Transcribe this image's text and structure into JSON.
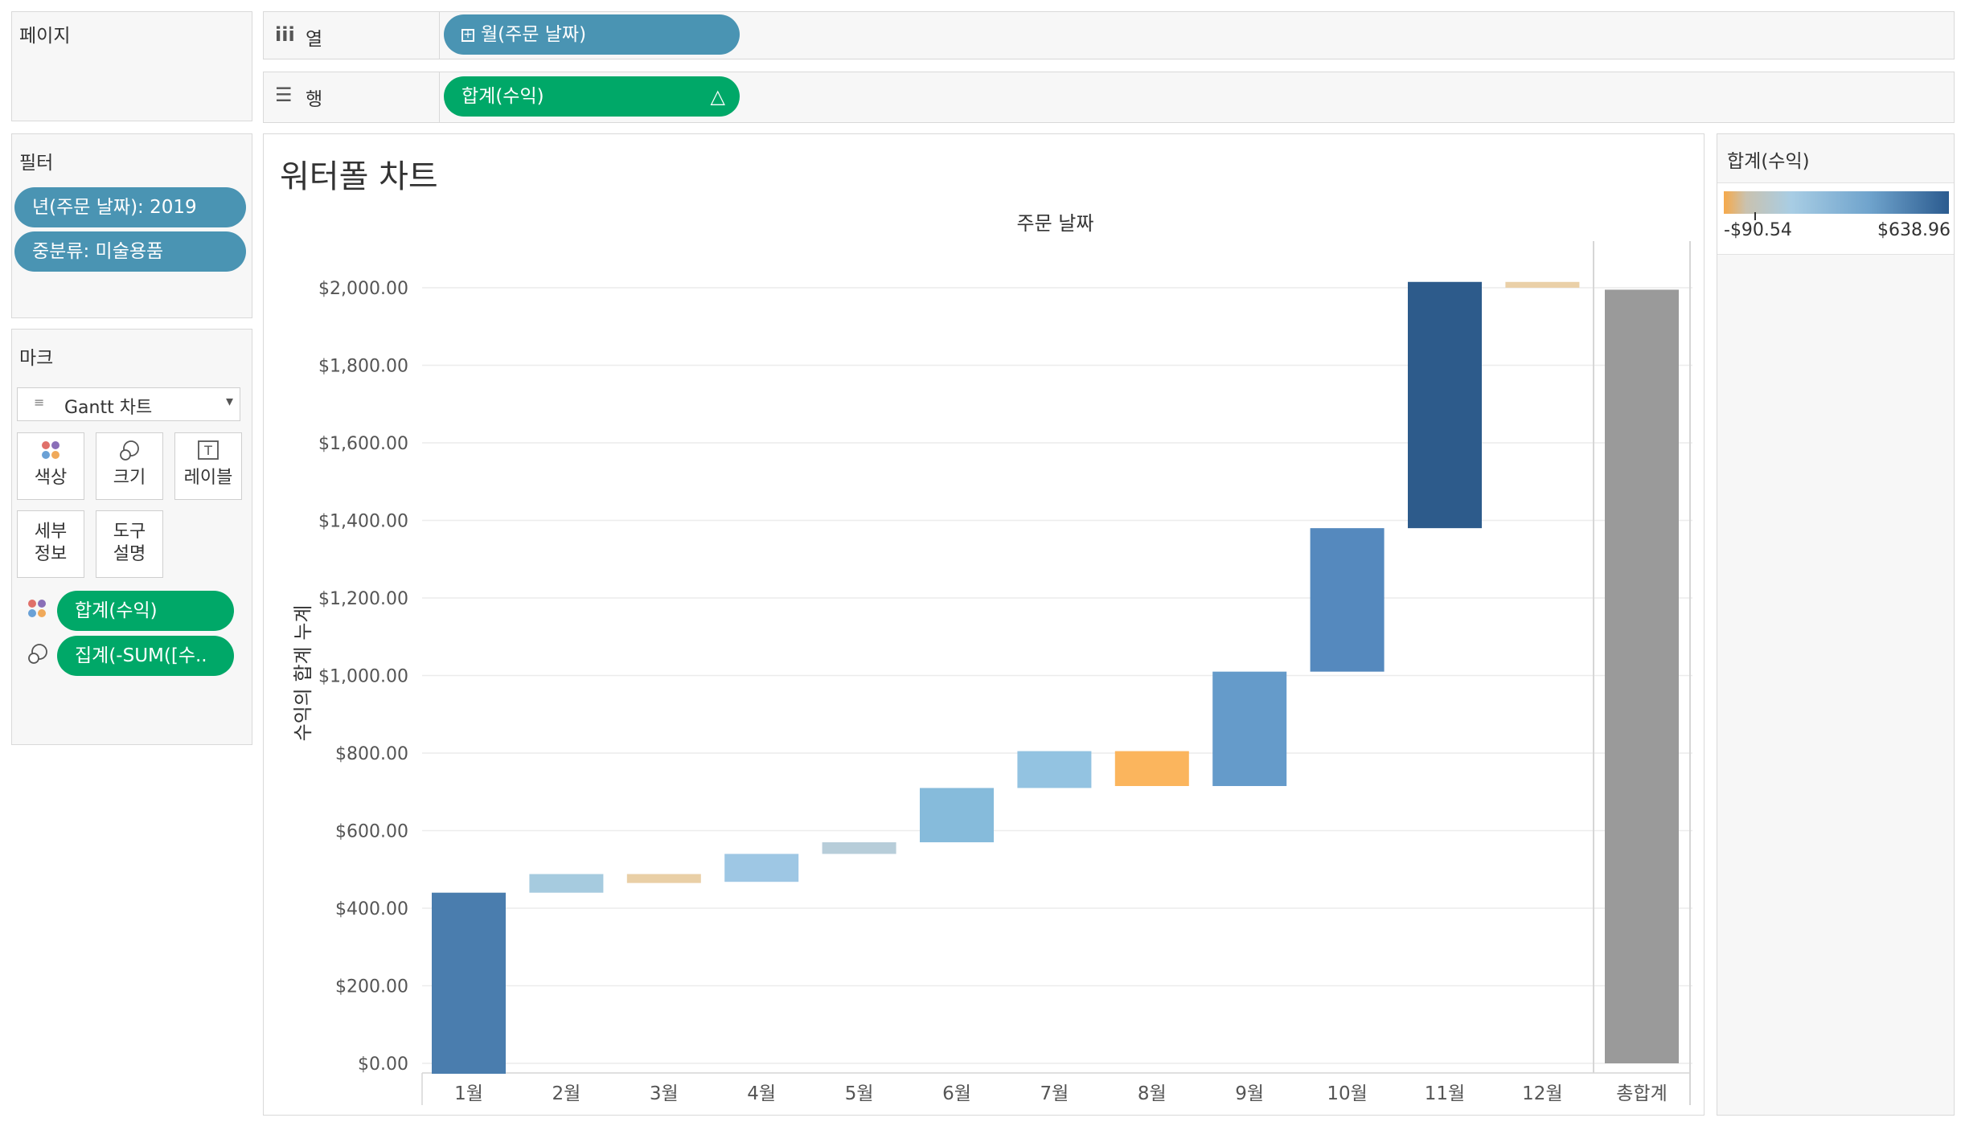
{
  "pages_panel": {
    "title": "페이지"
  },
  "filters_panel": {
    "title": "필터",
    "items": [
      "년(주문 날짜): 2019",
      "중분류: 미술용품"
    ]
  },
  "marks_panel": {
    "title": "마크",
    "mark_type": "Gantt 차트",
    "buttons": {
      "color": "색상",
      "size": "크기",
      "label": "레이블",
      "detail": "세부\n정보",
      "tooltip": "도구\n설명"
    },
    "fields": [
      "합계(수익)",
      "집계(-SUM([수.."
    ]
  },
  "shelves": {
    "columns_label": "열",
    "columns_pill": "월(주문 날짜)",
    "rows_label": "행",
    "rows_pill": "합계(수익)",
    "rows_pill_icon": "delta-icon"
  },
  "legend": {
    "title": "합계(수익)",
    "min_label": "-$90.54",
    "max_label": "$638.96",
    "colors": [
      "#f6a94a",
      "#c9c2b0",
      "#a8cde4",
      "#6fa3cc",
      "#2b5b8f"
    ]
  },
  "chart_data": {
    "type": "bar",
    "subtype": "waterfall-gantt",
    "title": "워터폴 차트",
    "xlabel": "주문 날짜",
    "ylabel": "수익의 합계 누계",
    "categories": [
      "1월",
      "2월",
      "3월",
      "4월",
      "5월",
      "6월",
      "7월",
      "8월",
      "9월",
      "10월",
      "11월",
      "12월",
      "총합계"
    ],
    "starts": [
      0,
      440,
      465,
      468,
      540,
      570,
      710,
      805,
      715,
      1010,
      1380,
      2015,
      0
    ],
    "ends": [
      440,
      488,
      488,
      540,
      570,
      710,
      805,
      715,
      1010,
      1380,
      2015,
      2000,
      1995
    ],
    "colors": [
      "#4a7dae",
      "#a6cbdf",
      "#e9cfa6",
      "#9ec7e4",
      "#b7cdd9",
      "#86bbdb",
      "#93c3e1",
      "#fbb55d",
      "#659bca",
      "#5589be",
      "#2d5b8b",
      "#ead0a8",
      "#9a9a9a"
    ],
    "ylim": [
      0,
      2050
    ],
    "yticks": [
      0,
      200,
      400,
      600,
      800,
      1000,
      1200,
      1400,
      1600,
      1800,
      2000
    ],
    "ytick_labels": [
      "$0.00",
      "$200.00",
      "$400.00",
      "$600.00",
      "$800.00",
      "$1,000.00",
      "$1,200.00",
      "$1,400.00",
      "$1,600.00",
      "$1,800.00",
      "$2,000.00"
    ],
    "grid": true
  }
}
